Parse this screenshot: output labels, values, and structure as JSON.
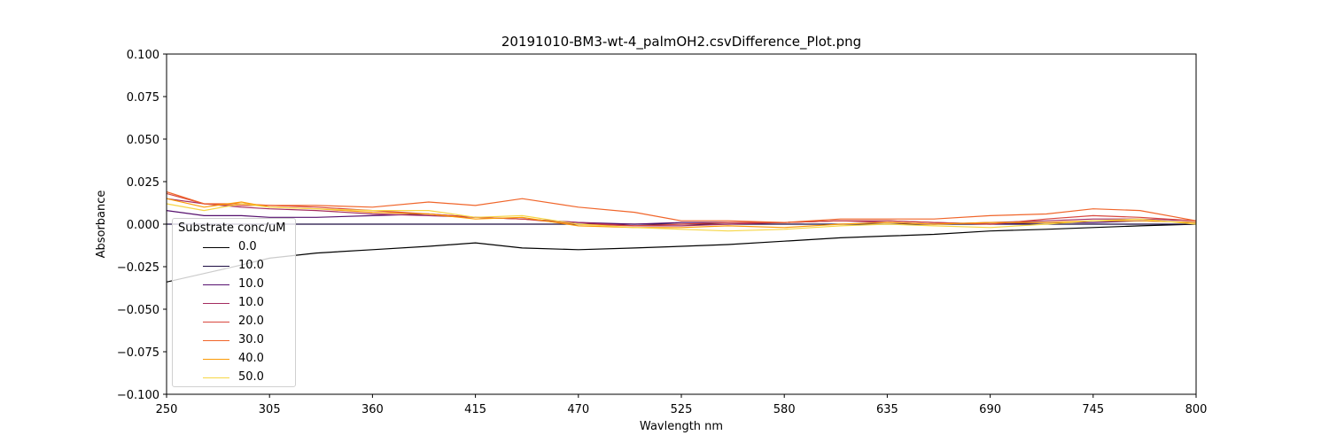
{
  "chart_data": {
    "type": "line",
    "title": "20191010-BM3-wt-4_palmOH2.csvDifference_Plot.png",
    "xlabel": "Wavlength nm",
    "ylabel": "Absorbance",
    "xlim": [
      250,
      800
    ],
    "ylim": [
      -0.1,
      0.1
    ],
    "xticks": [
      "250",
      "305",
      "360",
      "415",
      "470",
      "525",
      "580",
      "635",
      "690",
      "745",
      "800"
    ],
    "yticks": [
      "0.100",
      "0.075",
      "0.050",
      "0.025",
      "0.000",
      "−0.025",
      "−0.050",
      "−0.075",
      "−0.100"
    ],
    "grid": false,
    "legend": {
      "title": "Substrate conc/uM",
      "placement": "lower-left"
    },
    "x": [
      250,
      270,
      290,
      305,
      330,
      360,
      390,
      415,
      440,
      470,
      500,
      525,
      550,
      580,
      610,
      635,
      660,
      690,
      720,
      745,
      770,
      800
    ],
    "series": [
      {
        "name": "0.0",
        "color": "#000000",
        "values": [
          -0.034,
          -0.029,
          -0.024,
          -0.02,
          -0.017,
          -0.015,
          -0.013,
          -0.011,
          -0.014,
          -0.015,
          -0.014,
          -0.013,
          -0.012,
          -0.01,
          -0.008,
          -0.007,
          -0.006,
          -0.004,
          -0.003,
          -0.002,
          -0.001,
          0.0
        ]
      },
      {
        "name": "10.0",
        "color": "#1c0c42",
        "values": [
          0.0,
          0.0,
          0.0,
          0.0,
          0.0,
          0.0,
          0.0,
          0.0,
          0.0,
          0.0,
          0.0,
          0.0,
          0.0,
          0.0,
          0.0,
          0.0,
          0.0,
          0.0,
          0.0,
          0.0,
          0.0,
          0.0
        ]
      },
      {
        "name": "10.0",
        "color": "#56106e",
        "values": [
          0.008,
          0.005,
          0.005,
          0.004,
          0.004,
          0.005,
          0.006,
          0.004,
          0.003,
          0.001,
          0.0,
          0.001,
          0.001,
          0.001,
          0.002,
          0.002,
          0.001,
          0.0,
          0.001,
          0.001,
          0.002,
          0.001
        ]
      },
      {
        "name": "10.0",
        "color": "#a42c60",
        "values": [
          0.015,
          0.012,
          0.01,
          0.009,
          0.008,
          0.006,
          0.005,
          0.004,
          0.003,
          0.001,
          -0.001,
          -0.001,
          0.0,
          0.001,
          0.002,
          0.001,
          0.0,
          0.001,
          0.002,
          0.003,
          0.003,
          0.002
        ]
      },
      {
        "name": "20.0",
        "color": "#d8473e",
        "values": [
          0.018,
          0.012,
          0.011,
          0.011,
          0.01,
          0.008,
          0.006,
          0.004,
          0.003,
          0.0,
          -0.001,
          0.0,
          0.001,
          0.001,
          0.002,
          0.002,
          0.001,
          0.0,
          0.003,
          0.005,
          0.004,
          0.002
        ]
      },
      {
        "name": "30.0",
        "color": "#f0652a",
        "values": [
          0.019,
          0.012,
          0.012,
          0.011,
          0.011,
          0.01,
          0.013,
          0.011,
          0.015,
          0.01,
          0.007,
          0.002,
          0.002,
          0.001,
          0.003,
          0.003,
          0.003,
          0.005,
          0.006,
          0.009,
          0.008,
          0.002
        ]
      },
      {
        "name": "40.0",
        "color": "#fb9b06",
        "values": [
          0.015,
          0.01,
          0.013,
          0.01,
          0.009,
          0.007,
          0.006,
          0.003,
          0.004,
          -0.001,
          -0.002,
          -0.002,
          -0.001,
          -0.002,
          0.0,
          0.001,
          0.0,
          0.001,
          0.001,
          0.002,
          0.002,
          0.001
        ]
      },
      {
        "name": "50.0",
        "color": "#f6d645",
        "values": [
          0.012,
          0.008,
          0.012,
          0.01,
          0.009,
          0.008,
          0.008,
          0.004,
          0.005,
          0.0,
          -0.002,
          -0.003,
          -0.004,
          -0.003,
          -0.001,
          0.0,
          -0.001,
          -0.002,
          0.0,
          0.002,
          0.003,
          0.0
        ]
      }
    ]
  }
}
